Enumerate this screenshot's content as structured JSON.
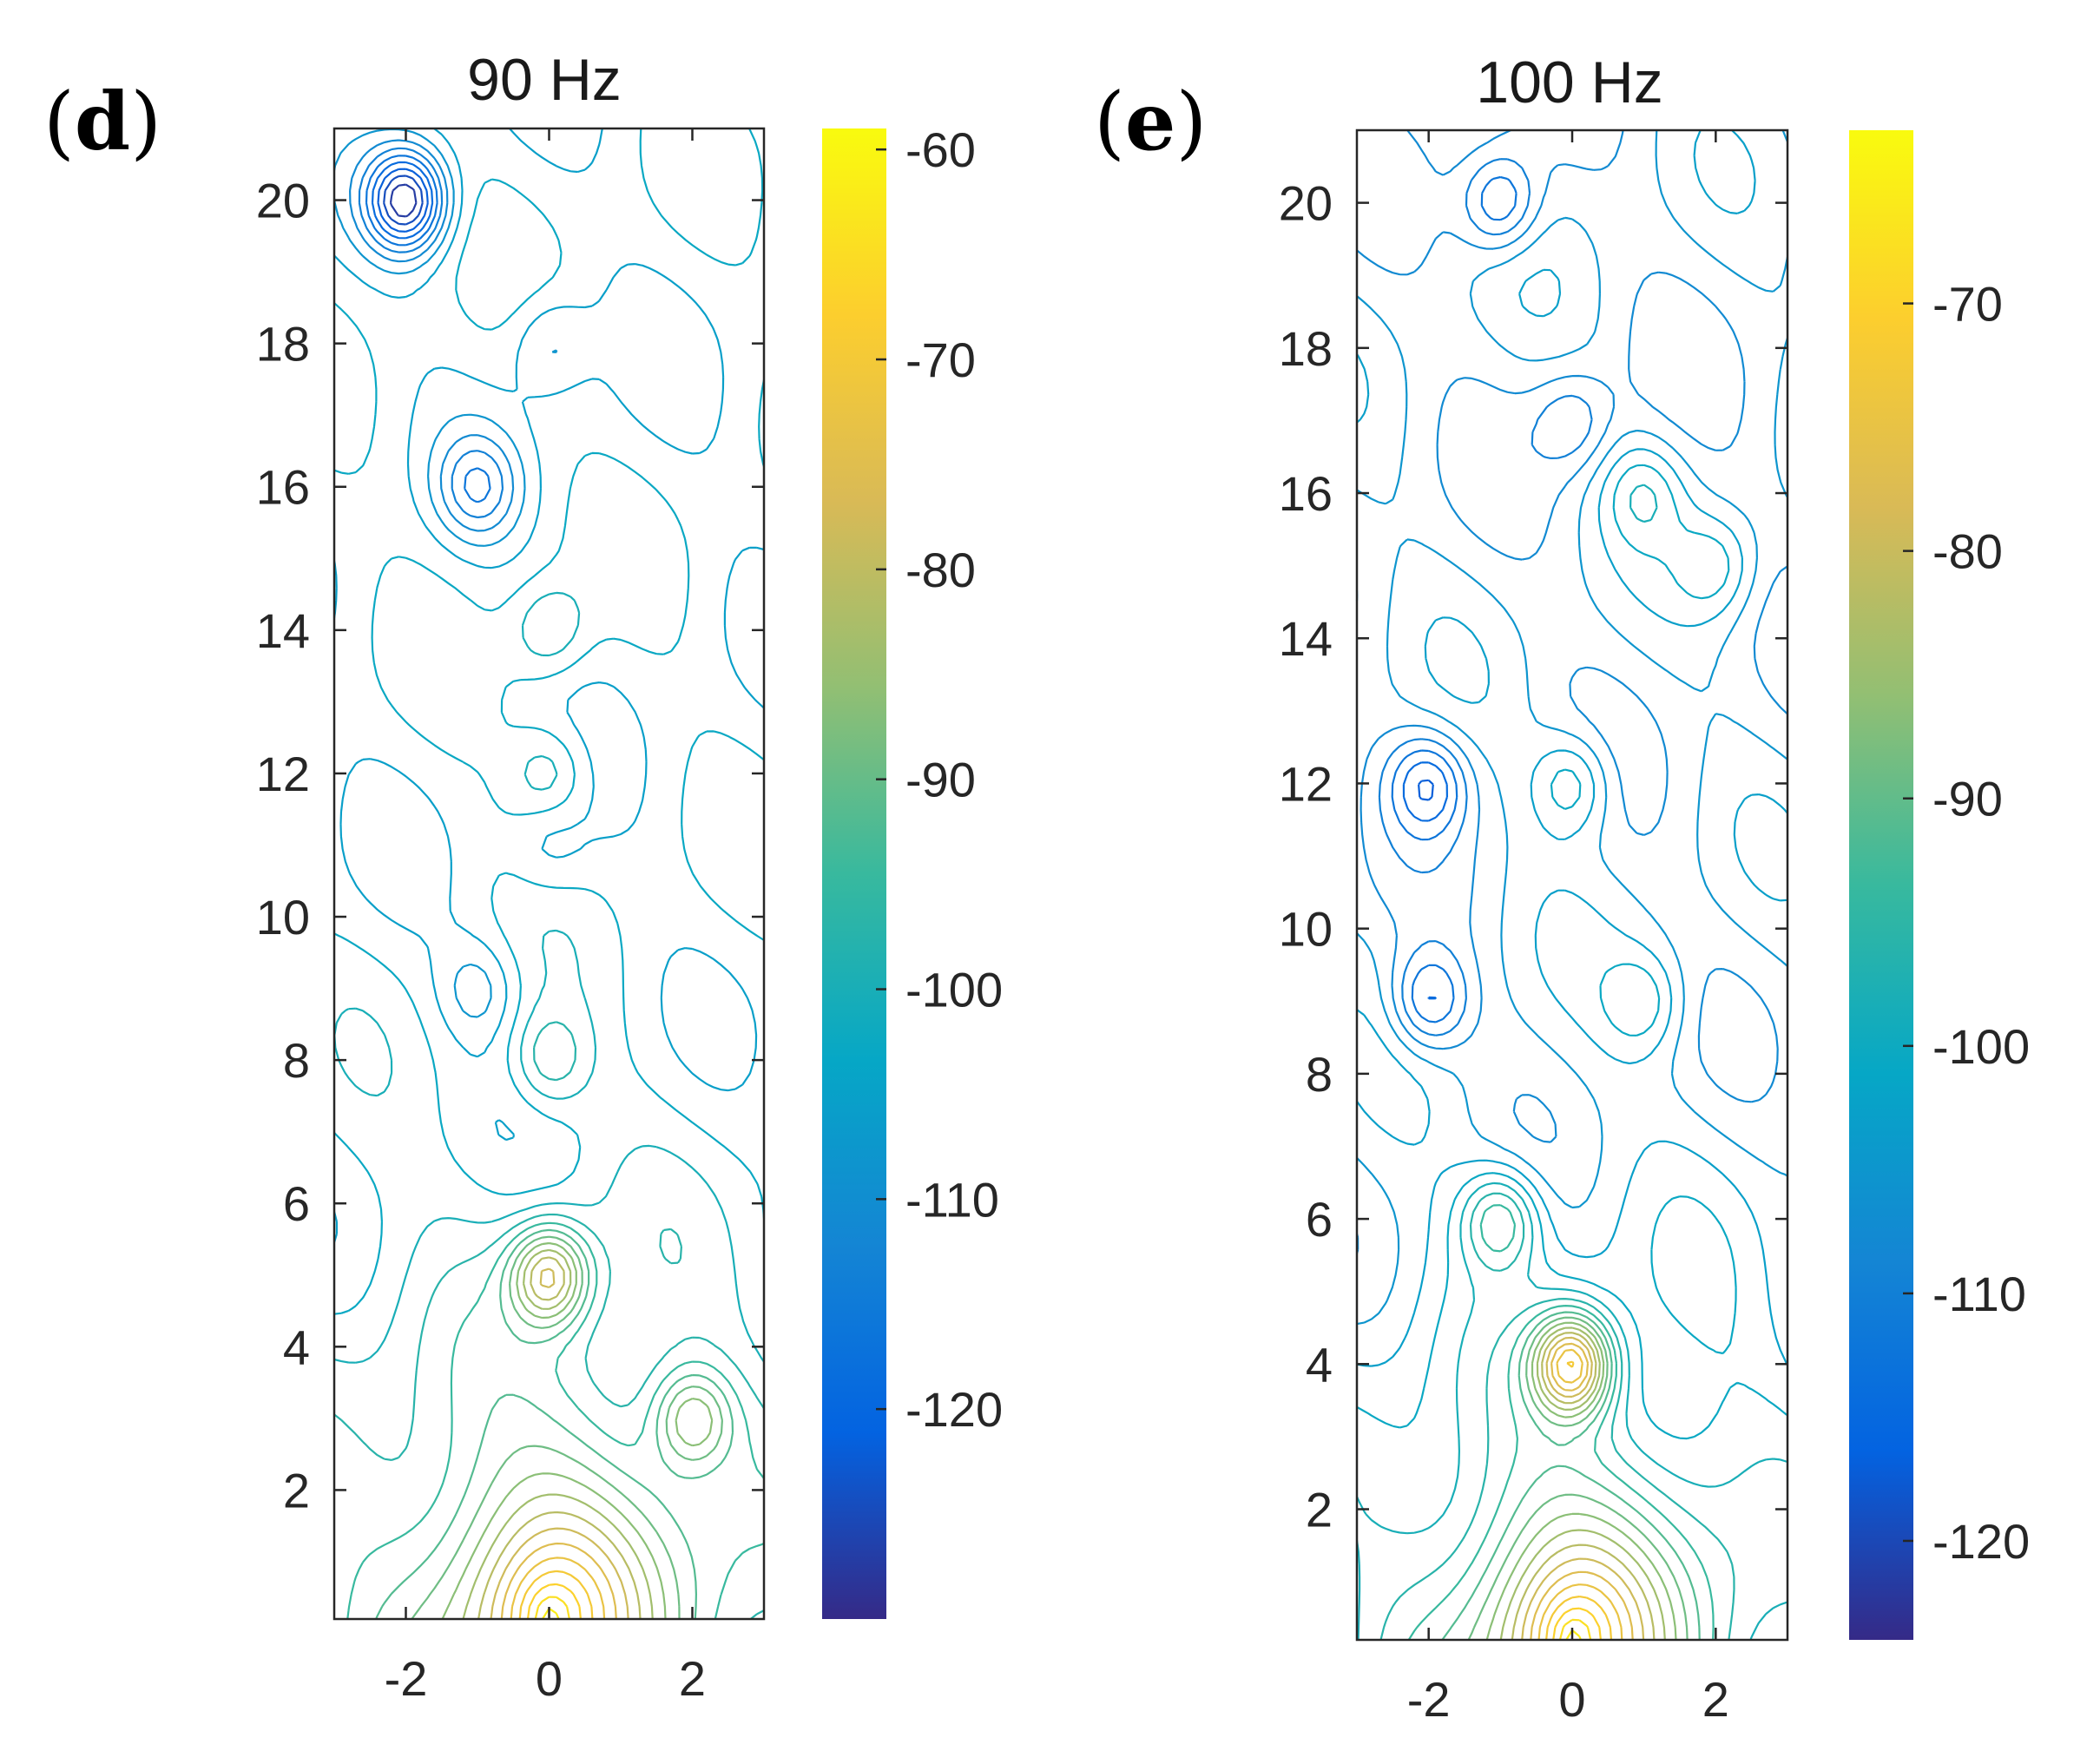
{
  "chart_data": [
    {
      "type": "contour",
      "panel_label": "d",
      "title": "90  Hz",
      "xlabel": "",
      "ylabel": "",
      "xlim": [
        -3,
        3
      ],
      "ylim": [
        0.2,
        21
      ],
      "xticks": [
        -2,
        0,
        2
      ],
      "yticks": [
        2,
        4,
        6,
        8,
        10,
        12,
        14,
        16,
        18,
        20
      ],
      "colorbar": {
        "colormap": "parula",
        "clim": [
          -130,
          -59
        ],
        "ticks": [
          -60,
          -70,
          -80,
          -90,
          -100,
          -110,
          -120
        ]
      },
      "source_x": 0,
      "source_y": 0.2,
      "source_level": -61,
      "background_level": -104,
      "hotspots": [
        {
          "x": -2,
          "y": 20,
          "level": -128
        },
        {
          "x": 0,
          "y": 18,
          "level": -110
        },
        {
          "x": -1,
          "y": 16,
          "level": -114
        },
        {
          "x": 0,
          "y": 14,
          "level": -97
        },
        {
          "x": 0,
          "y": 12,
          "level": -97
        },
        {
          "x": 0,
          "y": 11,
          "level": -108
        },
        {
          "x": -1,
          "y": 9,
          "level": -110
        },
        {
          "x": 0,
          "y": 8,
          "level": -96
        },
        {
          "x": 0,
          "y": 5,
          "level": -82
        },
        {
          "x": 2,
          "y": 3,
          "level": -90
        }
      ]
    },
    {
      "type": "contour",
      "panel_label": "e",
      "title": "100  Hz",
      "xlabel": "",
      "ylabel": "",
      "xlim": [
        -3,
        3
      ],
      "ylim": [
        0.2,
        21
      ],
      "xticks": [
        -2,
        0,
        2
      ],
      "yticks": [
        2,
        4,
        6,
        8,
        10,
        12,
        14,
        16,
        18,
        20
      ],
      "colorbar": {
        "colormap": "parula",
        "clim": [
          -124,
          -63
        ],
        "ticks": [
          -70,
          -80,
          -90,
          -100,
          -110,
          -120
        ]
      },
      "source_x": 0,
      "source_y": 0.2,
      "source_level": -65,
      "background_level": -106,
      "hotspots": [
        {
          "x": -1,
          "y": 20,
          "level": -116
        },
        {
          "x": 0,
          "y": 17,
          "level": -112
        },
        {
          "x": 1,
          "y": 16,
          "level": -100
        },
        {
          "x": 2,
          "y": 15,
          "level": -100
        },
        {
          "x": -2,
          "y": 12,
          "level": -116
        },
        {
          "x": 0,
          "y": 12,
          "level": -98
        },
        {
          "x": -2,
          "y": 9,
          "level": -116
        },
        {
          "x": 1,
          "y": 9,
          "level": -100
        },
        {
          "x": -1,
          "y": 6,
          "level": -94
        },
        {
          "x": 0,
          "y": 4,
          "level": -80
        }
      ]
    }
  ]
}
